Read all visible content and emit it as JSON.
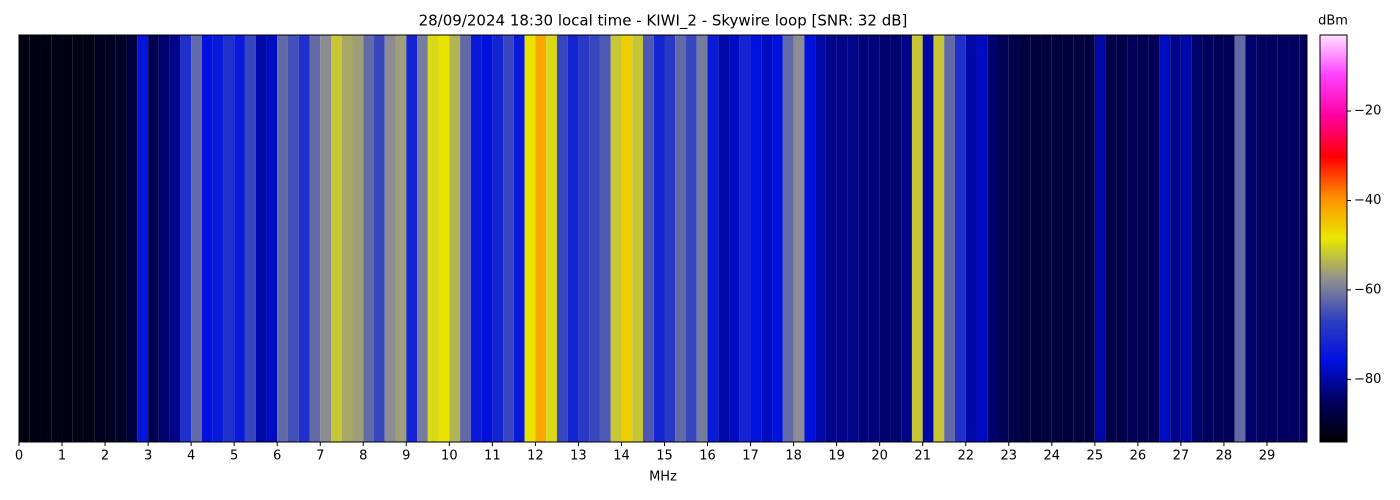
{
  "chart_data": {
    "type": "waterfall",
    "title": "28/09/2024 18:30 local time - KIWI_2 - Skywire loop [SNR: 32 dB]",
    "xlabel": "MHz",
    "colorbar_label": "dBm",
    "xlim": [
      0,
      30
    ],
    "xticks": [
      0,
      1,
      2,
      3,
      4,
      5,
      6,
      7,
      8,
      9,
      10,
      11,
      12,
      13,
      14,
      15,
      16,
      17,
      18,
      19,
      20,
      21,
      22,
      23,
      24,
      25,
      26,
      27,
      28,
      29
    ],
    "vlim": [
      -94,
      -3
    ],
    "vticks": [
      {
        "value": -20,
        "label": "−20"
      },
      {
        "value": -40,
        "label": "−40"
      },
      {
        "value": -60,
        "label": "−60"
      },
      {
        "value": -80,
        "label": "−80"
      }
    ],
    "colormap": [
      "#000000",
      "#000060",
      "#0010e0",
      "#3040c0",
      "#909090",
      "#e8e800",
      "#ff9000",
      "#ff0000",
      "#ff00a0",
      "#ff40ff",
      "#ffe0ff"
    ],
    "bins": [
      0,
      0.25,
      0.5,
      0.75,
      1,
      1.25,
      1.5,
      1.75,
      2,
      2.25,
      2.5,
      2.75,
      3,
      3.25,
      3.5,
      3.75,
      4,
      4.25,
      4.5,
      4.75,
      5,
      5.25,
      5.5,
      5.75,
      6,
      6.25,
      6.5,
      6.75,
      7,
      7.25,
      7.5,
      7.75,
      8,
      8.25,
      8.5,
      8.75,
      9,
      9.25,
      9.5,
      9.75,
      10,
      10.25,
      10.5,
      10.75,
      11,
      11.25,
      11.5,
      11.75,
      12,
      12.25,
      12.5,
      12.75,
      13,
      13.25,
      13.5,
      13.75,
      14,
      14.25,
      14.5,
      14.75,
      15,
      15.25,
      15.5,
      15.75,
      16,
      16.25,
      16.5,
      16.75,
      17,
      17.25,
      17.5,
      17.75,
      18,
      18.25,
      18.5,
      18.75,
      19,
      19.25,
      19.5,
      19.75,
      20,
      20.25,
      20.5,
      20.75,
      21,
      21.25,
      21.5,
      21.75,
      22,
      22.25,
      22.5,
      22.75,
      23,
      23.25,
      23.5,
      23.75,
      24,
      24.25,
      24.5,
      24.75,
      25,
      25.25,
      25.5,
      25.75,
      26,
      26.25,
      26.5,
      26.75,
      27,
      27.25,
      27.5,
      27.75,
      28,
      28.25,
      28.5,
      28.75,
      29,
      29.25,
      29.5,
      29.75,
      30
    ],
    "values": [
      -92,
      -92,
      -92,
      -92,
      -92,
      -92,
      -92,
      -91,
      -91,
      -90,
      -88,
      -75,
      -86,
      -84,
      -82,
      -70,
      -62,
      -76,
      -74,
      -70,
      -74,
      -66,
      -80,
      -78,
      -62,
      -65,
      -70,
      -62,
      -58,
      -52,
      -55,
      -56,
      -62,
      -66,
      -58,
      -56,
      -72,
      -60,
      -50,
      -48,
      -54,
      -62,
      -74,
      -76,
      -72,
      -66,
      -74,
      -48,
      -42,
      -50,
      -66,
      -72,
      -68,
      -66,
      -64,
      -52,
      -46,
      -52,
      -64,
      -72,
      -68,
      -62,
      -66,
      -60,
      -74,
      -80,
      -78,
      -72,
      -76,
      -78,
      -76,
      -62,
      -58,
      -76,
      -80,
      -82,
      -82,
      -82,
      -83,
      -83,
      -84,
      -84,
      -82,
      -52,
      -80,
      -52,
      -62,
      -70,
      -80,
      -78,
      -84,
      -86,
      -87,
      -88,
      -88,
      -88,
      -88,
      -88,
      -88,
      -88,
      -80,
      -87,
      -87,
      -86,
      -86,
      -86,
      -78,
      -82,
      -80,
      -84,
      -85,
      -86,
      -86,
      -62,
      -84,
      -85,
      -85,
      -85,
      -85,
      -85,
      -85
    ]
  }
}
